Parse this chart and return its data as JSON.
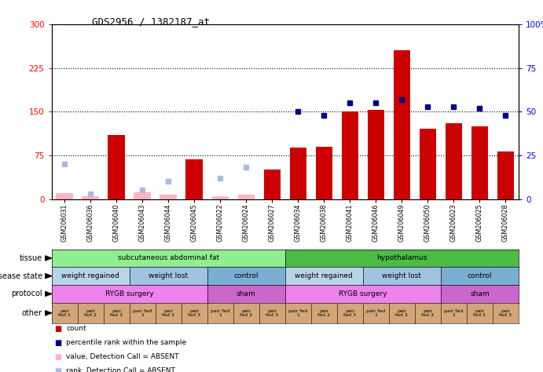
{
  "title": "GDS2956 / 1382187_at",
  "samples": [
    "GSM206031",
    "GSM206036",
    "GSM206040",
    "GSM206043",
    "GSM206044",
    "GSM206045",
    "GSM206022",
    "GSM206024",
    "GSM206027",
    "GSM206034",
    "GSM206038",
    "GSM206041",
    "GSM206046",
    "GSM206049",
    "GSM206050",
    "GSM206023",
    "GSM206025",
    "GSM206028"
  ],
  "count_values": [
    10,
    5,
    110,
    12,
    8,
    68,
    5,
    8,
    50,
    88,
    90,
    150,
    153,
    255,
    120,
    130,
    125,
    82
  ],
  "count_absent": [
    true,
    true,
    false,
    true,
    true,
    false,
    true,
    true,
    false,
    false,
    false,
    false,
    false,
    false,
    false,
    false,
    false,
    false
  ],
  "percentile_values": [
    20,
    3,
    null,
    5,
    10,
    null,
    12,
    18,
    null,
    50,
    48,
    55,
    55,
    57,
    53,
    53,
    52,
    48
  ],
  "percentile_absent": [
    true,
    true,
    null,
    true,
    true,
    null,
    true,
    true,
    null,
    false,
    false,
    false,
    false,
    false,
    false,
    false,
    false,
    false
  ],
  "ylim_left": [
    0,
    300
  ],
  "ylim_right": [
    0,
    100
  ],
  "yticks_left": [
    0,
    75,
    150,
    225,
    300
  ],
  "yticks_right": [
    0,
    25,
    50,
    75,
    100
  ],
  "ytick_labels_left": [
    "0",
    "75",
    "150",
    "225",
    "300"
  ],
  "ytick_labels_right": [
    "0",
    "25",
    "50",
    "75",
    "100%"
  ],
  "hlines": [
    75,
    150,
    225
  ],
  "tissue_segments": [
    {
      "label": "subcutaneous abdominal fat",
      "start": 0,
      "end": 9,
      "color": "#90EE90"
    },
    {
      "label": "hypothalamus",
      "start": 9,
      "end": 18,
      "color": "#4CBB47"
    }
  ],
  "disease_segments": [
    {
      "label": "weight regained",
      "start": 0,
      "end": 3,
      "color": "#B8D4E8"
    },
    {
      "label": "weight lost",
      "start": 3,
      "end": 6,
      "color": "#A0C4E0"
    },
    {
      "label": "control",
      "start": 6,
      "end": 9,
      "color": "#7AAFD4"
    },
    {
      "label": "weight regained",
      "start": 9,
      "end": 12,
      "color": "#B8D4E8"
    },
    {
      "label": "weight lost",
      "start": 12,
      "end": 15,
      "color": "#A0C4E0"
    },
    {
      "label": "control",
      "start": 15,
      "end": 18,
      "color": "#7AAFD4"
    }
  ],
  "protocol_segments": [
    {
      "label": "RYGB surgery",
      "start": 0,
      "end": 6,
      "color": "#EE82EE"
    },
    {
      "label": "sham",
      "start": 6,
      "end": 9,
      "color": "#CC66CC"
    },
    {
      "label": "RYGB surgery",
      "start": 9,
      "end": 15,
      "color": "#EE82EE"
    },
    {
      "label": "sham",
      "start": 15,
      "end": 18,
      "color": "#CC66CC"
    }
  ],
  "other_labels": [
    "pair\nfed 1",
    "pair\nfed 2",
    "pair\nfed 3",
    "pair fed\n1",
    "pair\nfed 2",
    "pair\nfed 3",
    "pair fed\n1",
    "pair\nfed 2",
    "pair\nfed 3",
    "pair fed\n1",
    "pair\nfed 2",
    "pair\nfed 3",
    "pair fed\n1",
    "pair\nfed 2",
    "pair\nfed 3",
    "pair fed\n1",
    "pair\nfed 2",
    "pair\nfed 3"
  ],
  "other_color": "#D2A679",
  "bar_color_present": "#CC0000",
  "bar_color_absent": "#FFB6C1",
  "dot_color_present": "#00008B",
  "dot_color_absent": "#AABBDD",
  "legend": [
    {
      "color": "#CC0000",
      "label": "count"
    },
    {
      "color": "#00008B",
      "label": "percentile rank within the sample"
    },
    {
      "color": "#FFB6C1",
      "label": "value, Detection Call = ABSENT"
    },
    {
      "color": "#AABBDD",
      "label": "rank, Detection Call = ABSENT"
    }
  ],
  "row_labels": [
    "tissue",
    "disease state",
    "protocol",
    "other"
  ]
}
